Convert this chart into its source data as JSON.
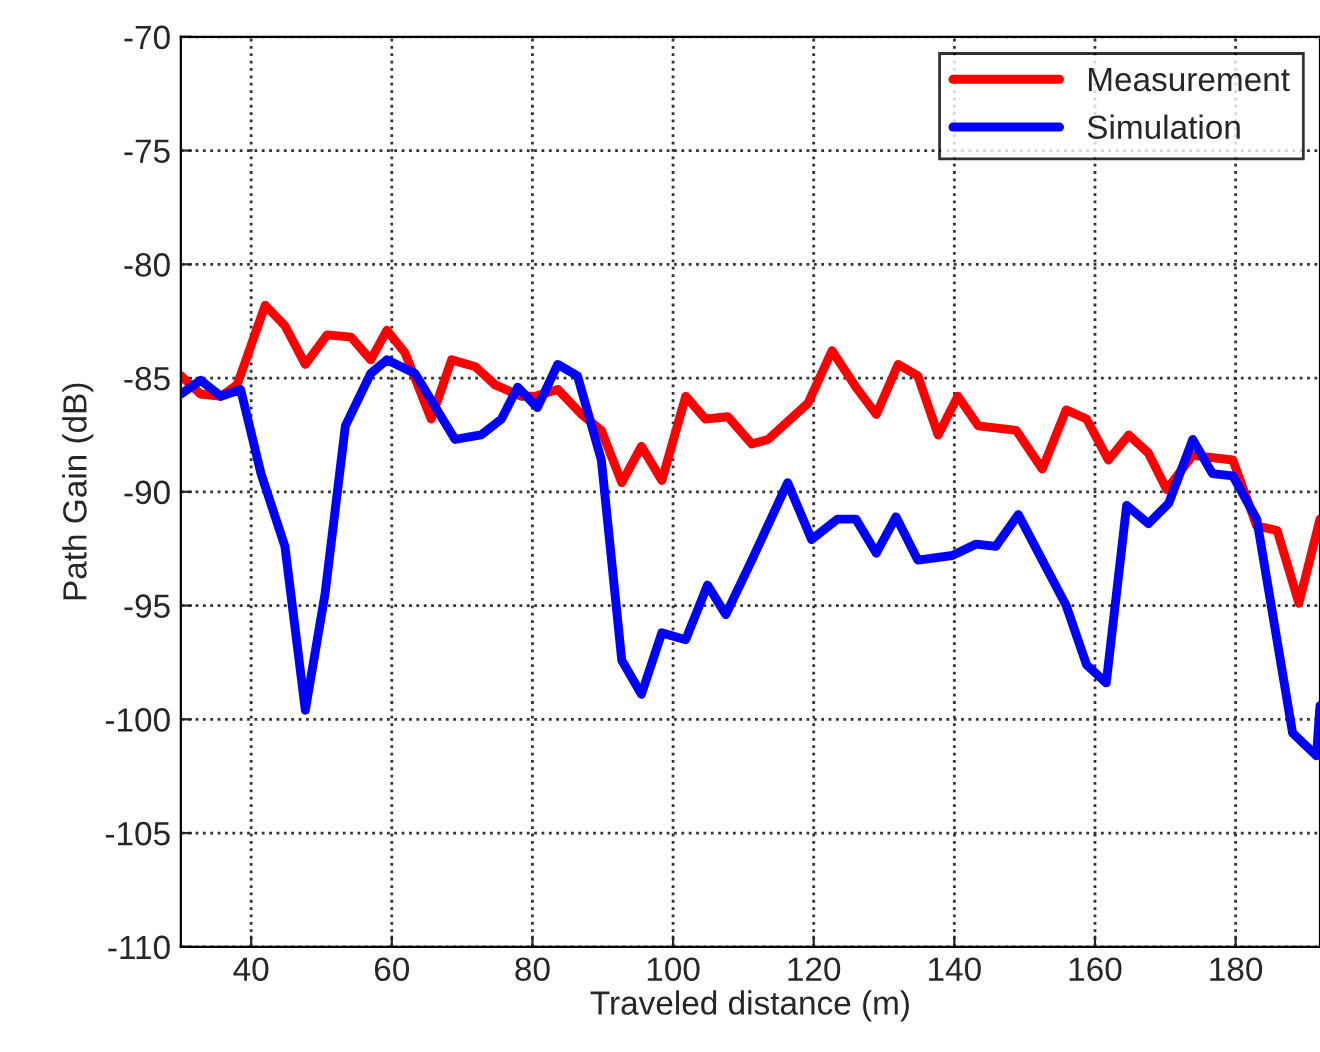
{
  "chart_data": {
    "type": "line",
    "xlabel": "Traveled distance (m)",
    "ylabel": "Path Gain (dB)",
    "xlim": [
      30,
      192
    ],
    "xticks": [
      40,
      60,
      80,
      100,
      120,
      140,
      160,
      180
    ],
    "ylim": [
      -110,
      -70
    ],
    "yticks": [
      -110,
      -105,
      -100,
      -95,
      -90,
      -85,
      -80,
      -75,
      -70
    ],
    "grid": true,
    "legend": "top right",
    "line_style": "solid",
    "marker": "none",
    "series": [
      {
        "name": "Measurement",
        "color": "#ff0000",
        "x": [
          30,
          32.8,
          35.7,
          38,
          42,
          44.8,
          47.7,
          50.8,
          54.2,
          57,
          59.3,
          61.9,
          65.6,
          68.5,
          71.9,
          74.7,
          78.4,
          80.4,
          83.6,
          87,
          89.8,
          92.7,
          95.5,
          98.4,
          101.8,
          104.6,
          107.8,
          111.2,
          113.5,
          119.2,
          122.6,
          126,
          128.9,
          132,
          134.8,
          137.7,
          140.5,
          143.4,
          148.8,
          152.5,
          155.9,
          158.8,
          161.9,
          164.8,
          167.6,
          170.2,
          173.9,
          179.6,
          183,
          185.9,
          189,
          192
        ],
        "values": [
          -84.9,
          -85.7,
          -85.8,
          -85.3,
          -81.8,
          -82.7,
          -84.4,
          -83.1,
          -83.2,
          -84.2,
          -82.9,
          -83.9,
          -86.8,
          -84.2,
          -84.5,
          -85.3,
          -85.8,
          -85.8,
          -85.5,
          -86.6,
          -87.3,
          -89.6,
          -88,
          -89.5,
          -85.8,
          -86.8,
          -86.7,
          -87.9,
          -87.7,
          -86.1,
          -83.8,
          -85.4,
          -86.6,
          -84.4,
          -84.9,
          -87.5,
          -85.8,
          -87.1,
          -87.3,
          -89,
          -86.4,
          -86.8,
          -88.6,
          -87.5,
          -88.3,
          -89.9,
          -88.4,
          -88.6,
          -91.5,
          -91.7,
          -94.9,
          -91.2
        ]
      },
      {
        "name": "Simulation",
        "color": "#0000ff",
        "x": [
          30,
          32.8,
          35.7,
          38.5,
          41.4,
          44.8,
          47.7,
          50.5,
          53.4,
          57,
          59.3,
          63.3,
          69,
          72.7,
          75.6,
          77.9,
          80.7,
          83.6,
          86.4,
          89.8,
          92.7,
          95.5,
          98.4,
          101.8,
          104.9,
          107.5,
          111.2,
          116.3,
          119.7,
          123.4,
          126,
          128.9,
          131.7,
          134.8,
          139.7,
          143.1,
          145.9,
          149.1,
          152.5,
          155.9,
          158.8,
          161.6,
          164.5,
          167.6,
          170.5,
          173.9,
          176.7,
          179.6,
          183,
          188.1,
          191.5,
          192
        ],
        "values": [
          -85.7,
          -85.1,
          -85.8,
          -85.5,
          -89.2,
          -92.4,
          -99.6,
          -94.5,
          -87.1,
          -84.8,
          -84.2,
          -84.8,
          -87.7,
          -87.5,
          -86.8,
          -85.4,
          -86.3,
          -84.4,
          -84.9,
          -88.6,
          -97.4,
          -98.9,
          -96.2,
          -96.5,
          -94.1,
          -95.4,
          -93,
          -89.6,
          -92.1,
          -91.2,
          -91.2,
          -92.7,
          -91.1,
          -93,
          -92.8,
          -92.3,
          -92.4,
          -91,
          -93,
          -95,
          -97.6,
          -98.4,
          -90.6,
          -91.4,
          -90.5,
          -87.7,
          -89.2,
          -89.3,
          -91.2,
          -100.6,
          -101.6,
          -99.4
        ]
      }
    ]
  }
}
